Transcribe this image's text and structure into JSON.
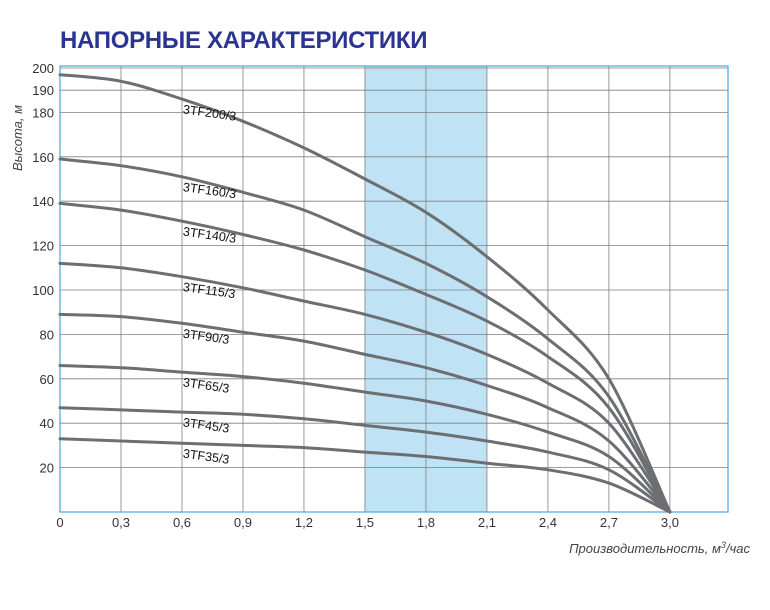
{
  "title": "НАПОРНЫЕ ХАРАКТЕРИСТИКИ",
  "colors": {
    "title": "#2b3590",
    "curve": "#6d6e71",
    "grid": "#7f7f7f",
    "frame": "#4aa8dd",
    "highlight": "#bfe2f5"
  },
  "chart_data": {
    "type": "line",
    "title": "НАПОРНЫЕ ХАРАКТЕРИСТИКИ",
    "xlabel": "Производительность, м³/час",
    "xlabel_parts": [
      "Производительность, м",
      "3",
      "/час"
    ],
    "ylabel": "Высота, м",
    "xlim": [
      0,
      3.2
    ],
    "ylim": [
      0,
      200
    ],
    "x_ticks": [
      0,
      0.3,
      0.6,
      0.9,
      1.2,
      1.5,
      1.8,
      2.1,
      2.4,
      2.7,
      3.0
    ],
    "x_tick_labels": [
      "0",
      "0,3",
      "0,6",
      "0,9",
      "1,2",
      "1,5",
      "1,8",
      "2,1",
      "2,4",
      "2,7",
      "3,0"
    ],
    "y_ticks": [
      20,
      40,
      60,
      80,
      100,
      120,
      140,
      160,
      180,
      190,
      200
    ],
    "y_tick_labels": [
      "20",
      "40",
      "60",
      "80",
      "100",
      "120",
      "140",
      "160",
      "180",
      "190",
      "200"
    ],
    "grid": true,
    "highlight_range": [
      1.5,
      2.1
    ],
    "x": [
      0,
      0.3,
      0.6,
      0.9,
      1.2,
      1.5,
      1.8,
      2.1,
      2.4,
      2.7,
      3.0
    ],
    "series": [
      {
        "name": "3TF200/3",
        "values": [
          197,
          194,
          186,
          176,
          164,
          150,
          135,
          115,
          91,
          60,
          0
        ]
      },
      {
        "name": "3TF160/3",
        "values": [
          159,
          156,
          151,
          144,
          136,
          124,
          112,
          97,
          78,
          52,
          0
        ]
      },
      {
        "name": "3TF140/3",
        "values": [
          139,
          136,
          131,
          125,
          118,
          109,
          98,
          86,
          70,
          47,
          0
        ]
      },
      {
        "name": "3TF115/3",
        "values": [
          112,
          110,
          106,
          101,
          95,
          89,
          81,
          71,
          58,
          40,
          0
        ]
      },
      {
        "name": "3TF90/3",
        "values": [
          89,
          88,
          85,
          81,
          77,
          71,
          65,
          57,
          47,
          32,
          0
        ]
      },
      {
        "name": "3TF65/3",
        "values": [
          66,
          65,
          63,
          61,
          58,
          54,
          50,
          44,
          36,
          25,
          0
        ]
      },
      {
        "name": "3TF45/3",
        "values": [
          47,
          46,
          45,
          44,
          42,
          39,
          36,
          32,
          27,
          19,
          0
        ]
      },
      {
        "name": "3TF35/3",
        "values": [
          33,
          32,
          31,
          30,
          29,
          27,
          25,
          22,
          19,
          13,
          0
        ]
      }
    ]
  }
}
